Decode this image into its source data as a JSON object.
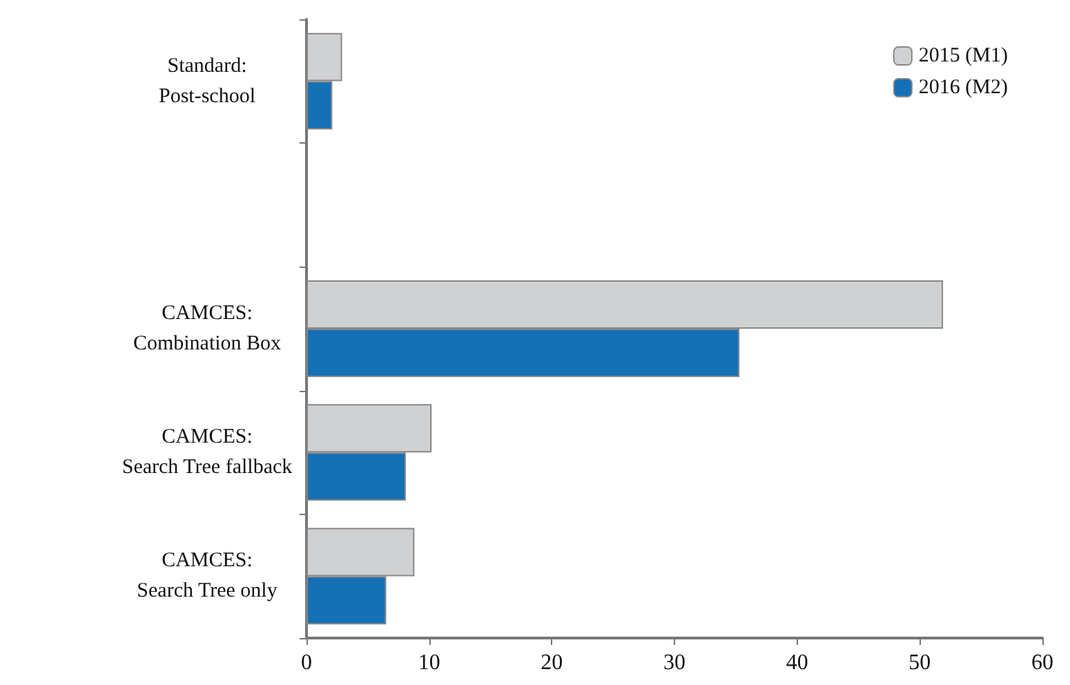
{
  "chart_data": {
    "type": "bar",
    "orientation": "horizontal",
    "categories": [
      "Standard:\nPost-school",
      null,
      "CAMCES:\nCombination Box",
      "CAMCES:\nSearch Tree fallback",
      "CAMCES:\nSearch Tree only"
    ],
    "series": [
      {
        "name": "2015 (M1)",
        "color": "#d0d1d3",
        "values": [
          2.9,
          null,
          51.9,
          10.2,
          8.8
        ]
      },
      {
        "name": "2016 (M2)",
        "color": "#1570b5",
        "values": [
          2.1,
          null,
          35.3,
          8.1,
          6.5
        ]
      }
    ],
    "xlim": [
      0,
      60
    ],
    "xticks": [
      0,
      10,
      20,
      30,
      40,
      50,
      60
    ],
    "grid": false,
    "legend": "top right"
  }
}
